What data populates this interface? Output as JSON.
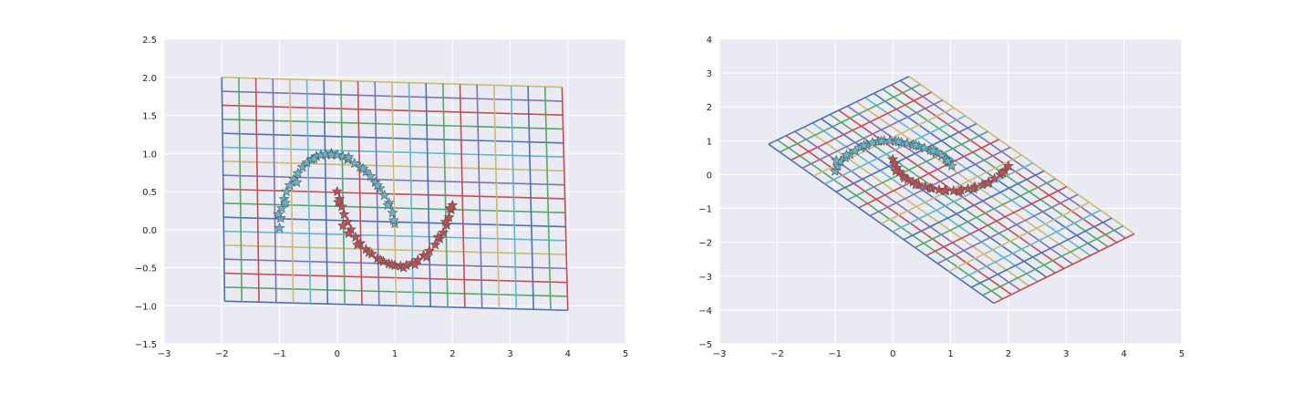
{
  "figure": {
    "background": "#ffffff",
    "axes_facecolor": "#eaeaf2",
    "gridline_color": "#ffffff"
  },
  "palette": [
    "#4c72b0",
    "#55a868",
    "#c44e52",
    "#8172b2",
    "#ccb974",
    "#64b5cd"
  ],
  "chart_data": [
    {
      "type": "line",
      "title": "",
      "xlabel": "",
      "ylabel": "",
      "xlim": [
        -3,
        5
      ],
      "ylim": [
        -1.5,
        2.5
      ],
      "xticks": [
        "−3",
        "−2",
        "−1",
        "0",
        "1",
        "2",
        "3",
        "4",
        "5"
      ],
      "yticks": [
        "−1.5",
        "−1.0",
        "−0.5",
        "0.0",
        "0.5",
        "1.0",
        "1.5",
        "2.0",
        "2.5"
      ],
      "grid": true,
      "mesh": {
        "description": "transformed coordinate grid (quadrilateral)",
        "corners": {
          "bottom_left": [
            -1.95,
            -0.94
          ],
          "bottom_right": [
            4.0,
            -1.06
          ],
          "top_left": [
            -2.0,
            2.0
          ],
          "top_right": [
            3.9,
            1.87
          ]
        },
        "rows": 16,
        "cols": 20
      },
      "series": [
        {
          "marker": "star",
          "color": "#64b5cd",
          "x": [
            -1.0,
            -0.98,
            -0.96,
            -0.92,
            -0.88,
            -0.82,
            -0.75,
            -0.68,
            -0.6,
            -0.52,
            -0.44,
            -0.36,
            -0.28,
            -0.2,
            -0.1,
            0.0,
            0.1,
            0.18,
            0.3,
            0.4,
            0.5,
            0.58,
            0.66,
            0.74,
            0.82,
            0.9,
            0.96,
            1.0,
            -1.02,
            -0.9,
            -0.7,
            -0.4,
            -0.1,
            0.2,
            0.45,
            0.7,
            0.88,
            0.98
          ],
          "y": [
            0.02,
            0.15,
            0.28,
            0.4,
            0.5,
            0.58,
            0.66,
            0.74,
            0.82,
            0.88,
            0.92,
            0.96,
            0.98,
            0.99,
            1.0,
            0.98,
            0.96,
            0.92,
            0.87,
            0.82,
            0.76,
            0.7,
            0.62,
            0.54,
            0.45,
            0.35,
            0.22,
            0.08,
            0.2,
            0.35,
            0.62,
            0.93,
            0.98,
            0.95,
            0.8,
            0.58,
            0.32,
            0.12
          ]
        },
        {
          "marker": "star",
          "color": "#c44e52",
          "x": [
            0.0,
            0.04,
            0.08,
            0.12,
            0.18,
            0.24,
            0.32,
            0.4,
            0.5,
            0.6,
            0.7,
            0.8,
            0.9,
            1.0,
            1.1,
            1.2,
            1.3,
            1.4,
            1.5,
            1.6,
            1.7,
            1.78,
            1.84,
            1.9,
            1.94,
            1.98,
            2.0,
            0.02,
            0.1,
            0.2,
            0.35,
            0.55,
            0.75,
            0.95,
            1.15,
            1.35,
            1.55,
            1.75,
            1.88,
            1.96
          ],
          "y": [
            0.5,
            0.4,
            0.3,
            0.2,
            0.1,
            0.0,
            -0.1,
            -0.18,
            -0.26,
            -0.32,
            -0.38,
            -0.42,
            -0.45,
            -0.47,
            -0.48,
            -0.47,
            -0.44,
            -0.4,
            -0.34,
            -0.28,
            -0.2,
            -0.12,
            -0.04,
            0.06,
            0.16,
            0.26,
            0.32,
            0.36,
            0.05,
            -0.05,
            -0.2,
            -0.3,
            -0.4,
            -0.46,
            -0.5,
            -0.46,
            -0.36,
            -0.1,
            0.1,
            0.28
          ]
        }
      ]
    },
    {
      "type": "line",
      "title": "",
      "xlabel": "",
      "ylabel": "",
      "xlim": [
        -3,
        5
      ],
      "ylim": [
        -5,
        4
      ],
      "xticks": [
        "−3",
        "−2",
        "−1",
        "0",
        "1",
        "2",
        "3",
        "4",
        "5"
      ],
      "yticks": [
        "−5",
        "−4",
        "−3",
        "−2",
        "−1",
        "0",
        "1",
        "2",
        "3",
        "4"
      ],
      "grid": true,
      "mesh": {
        "description": "transformed coordinate grid (parallelogram)",
        "corners": {
          "bottom_left": [
            -2.15,
            0.9
          ],
          "bottom_right": [
            1.75,
            -3.8
          ],
          "top_left": [
            0.28,
            2.9
          ],
          "top_right": [
            4.18,
            -1.75
          ]
        },
        "rows": 16,
        "cols": 20
      },
      "series": [
        {
          "marker": "star",
          "color": "#64b5cd",
          "x": [
            -1.0,
            -0.95,
            -0.9,
            -0.82,
            -0.74,
            -0.65,
            -0.55,
            -0.45,
            -0.35,
            -0.25,
            -0.15,
            -0.05,
            0.05,
            0.15,
            0.25,
            0.35,
            0.45,
            0.55,
            0.65,
            0.75,
            0.85,
            0.92,
            0.98,
            1.02,
            -0.98,
            -0.8,
            -0.5,
            -0.2,
            0.1,
            0.4,
            0.7,
            0.95
          ],
          "y": [
            0.1,
            0.25,
            0.38,
            0.5,
            0.6,
            0.7,
            0.8,
            0.88,
            0.94,
            0.98,
            1.0,
            1.0,
            0.98,
            0.95,
            0.92,
            0.88,
            0.84,
            0.78,
            0.72,
            0.65,
            0.56,
            0.46,
            0.36,
            0.26,
            0.42,
            0.58,
            0.86,
            0.99,
            0.97,
            0.86,
            0.7,
            0.4
          ]
        },
        {
          "marker": "star",
          "color": "#c44e52",
          "x": [
            0.0,
            0.03,
            0.07,
            0.12,
            0.18,
            0.26,
            0.35,
            0.45,
            0.56,
            0.68,
            0.8,
            0.92,
            1.05,
            1.18,
            1.3,
            1.42,
            1.55,
            1.66,
            1.76,
            1.86,
            1.94,
            2.0,
            0.05,
            0.2,
            0.4,
            0.65,
            0.9,
            1.15,
            1.4,
            1.65,
            1.9
          ],
          "y": [
            0.45,
            0.32,
            0.2,
            0.08,
            -0.04,
            -0.14,
            -0.22,
            -0.3,
            -0.36,
            -0.41,
            -0.45,
            -0.47,
            -0.48,
            -0.46,
            -0.42,
            -0.36,
            -0.3,
            -0.22,
            -0.12,
            0.0,
            0.12,
            0.25,
            0.1,
            -0.1,
            -0.3,
            -0.4,
            -0.48,
            -0.5,
            -0.42,
            -0.26,
            0.05
          ]
        }
      ]
    }
  ]
}
